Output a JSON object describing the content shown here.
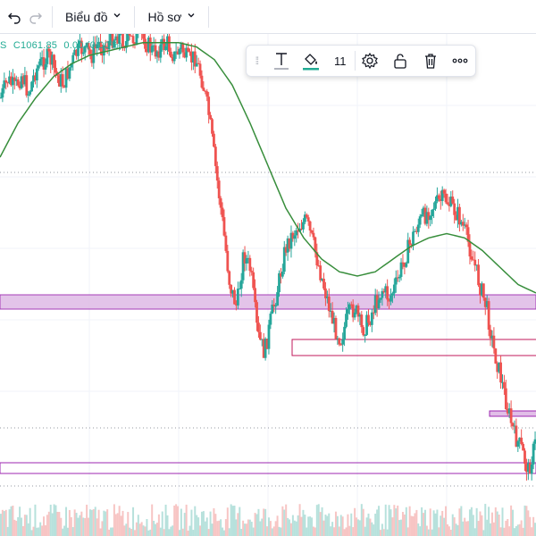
{
  "toolbar": {
    "undo_icon": "undo-icon",
    "redo_icon": "redo-icon",
    "chart_menu_label": "Biểu đồ",
    "profile_menu_label": "Hồ sơ"
  },
  "legend": {
    "prefix": "S",
    "close_value": "C1061.85",
    "change_value": "0.00 (0.00%)"
  },
  "drawing_toolbar": {
    "font_size": "11",
    "icons": [
      "drag-handle-icon",
      "text-icon",
      "fill-bucket-icon",
      "gear-icon",
      "unlock-icon",
      "trash-icon",
      "more-icon"
    ],
    "text_color": "#131722",
    "fill_color": "#22ab94"
  },
  "chart_data": {
    "type": "candlestick",
    "colors": {
      "up": "#26a69a",
      "down": "#ef5350",
      "ma": "#388e3c",
      "zone_fill": "#e1bee7",
      "zone_stroke": "#9c27b0",
      "zone_stroke_alt": "#c2185b"
    },
    "series": [
      {
        "name": "price",
        "ohlc_profile": [
          0.14,
          0.1,
          0.12,
          0.09,
          0.13,
          0.08,
          0.06,
          0.05,
          0.09,
          0.11,
          0.07,
          0.04,
          0.03,
          0.05,
          0.02,
          0.03,
          0.01,
          0.0,
          0.02,
          0.01,
          0.0,
          0.02,
          0.04,
          0.03,
          0.02,
          0.05,
          0.03,
          0.06,
          0.05,
          0.1,
          0.18,
          0.3,
          0.42,
          0.55,
          0.6,
          0.48,
          0.52,
          0.66,
          0.7,
          0.62,
          0.55,
          0.47,
          0.44,
          0.42,
          0.41,
          0.46,
          0.52,
          0.58,
          0.64,
          0.67,
          0.62,
          0.6,
          0.65,
          0.63,
          0.59,
          0.56,
          0.58,
          0.55,
          0.5,
          0.46,
          0.42,
          0.4,
          0.38,
          0.37,
          0.36,
          0.38,
          0.4,
          0.44,
          0.49,
          0.55,
          0.6,
          0.69,
          0.75,
          0.82,
          0.88,
          0.91,
          0.96,
          0.9
        ]
      },
      {
        "name": "ma",
        "profile": [
          0.28,
          0.2,
          0.14,
          0.09,
          0.06,
          0.04,
          0.03,
          0.02,
          0.01,
          0.01,
          0.01,
          0.02,
          0.05,
          0.11,
          0.2,
          0.3,
          0.4,
          0.47,
          0.52,
          0.55,
          0.56,
          0.55,
          0.52,
          0.49,
          0.47,
          0.46,
          0.47,
          0.5,
          0.54,
          0.58,
          0.6
        ]
      }
    ]
  }
}
